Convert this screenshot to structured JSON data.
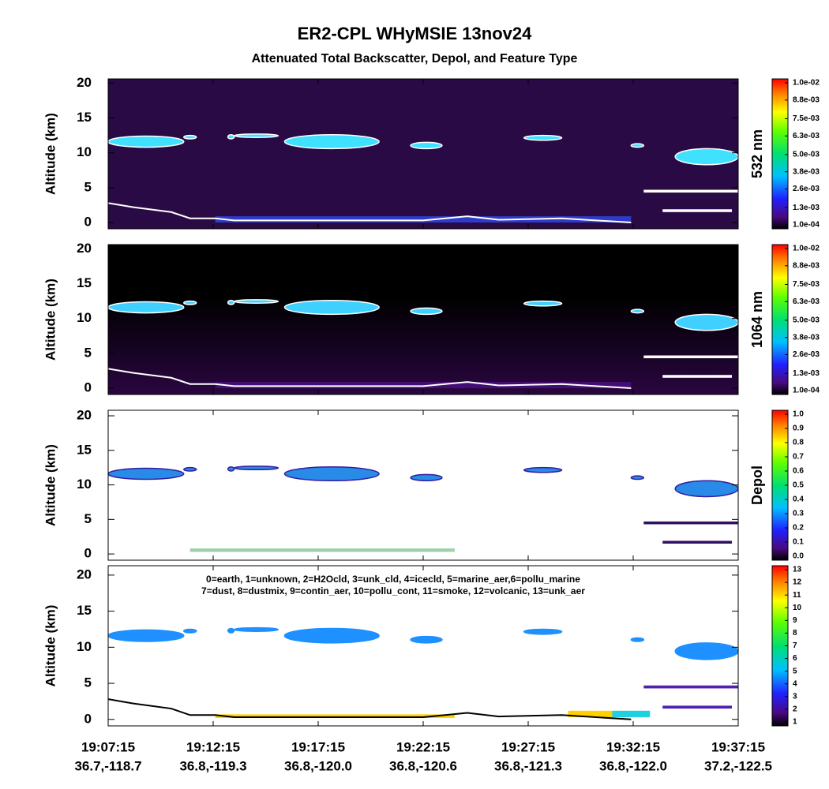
{
  "title": "ER2-CPL WHyMSIE 13nov24",
  "subtitle": "Attenuated Total Backscatter, Depol, and Feature Type",
  "chart_data": [
    {
      "type": "heatmap",
      "y_label": "Altitude (km)",
      "ylim": [
        -0.9,
        20.6
      ],
      "yticks": [
        0,
        5,
        10,
        15,
        20
      ],
      "background": "#2a0a44",
      "colorbar": {
        "label": "532 nm",
        "lim": [
          0.0001,
          0.01
        ],
        "ticks": [
          {
            "value": 0.01,
            "label": "1.0e-02"
          },
          {
            "value": 0.0088,
            "label": "8.8e-03"
          },
          {
            "value": 0.0075,
            "label": "7.5e-03"
          },
          {
            "value": 0.0063,
            "label": "6.3e-03"
          },
          {
            "value": 0.005,
            "label": "5.0e-03"
          },
          {
            "value": 0.0038,
            "label": "3.8e-03"
          },
          {
            "value": 0.0026,
            "label": "2.6e-03"
          },
          {
            "value": 0.0013,
            "label": "1.3e-03"
          },
          {
            "value": 0.0001,
            "label": "1.0e-04"
          }
        ]
      }
    },
    {
      "type": "heatmap",
      "y_label": "Altitude (km)",
      "ylim": [
        -0.9,
        20.6
      ],
      "yticks": [
        0,
        5,
        10,
        15,
        20
      ],
      "background": "#050008",
      "colorbar": {
        "label": "1064 nm",
        "lim": [
          0.0001,
          0.01
        ],
        "ticks": [
          {
            "value": 0.01,
            "label": "1.0e-02"
          },
          {
            "value": 0.0088,
            "label": "8.8e-03"
          },
          {
            "value": 0.0075,
            "label": "7.5e-03"
          },
          {
            "value": 0.0063,
            "label": "6.3e-03"
          },
          {
            "value": 0.005,
            "label": "5.0e-03"
          },
          {
            "value": 0.0038,
            "label": "3.8e-03"
          },
          {
            "value": 0.0026,
            "label": "2.6e-03"
          },
          {
            "value": 0.0013,
            "label": "1.3e-03"
          },
          {
            "value": 0.0001,
            "label": "1.0e-04"
          }
        ]
      }
    },
    {
      "type": "heatmap",
      "y_label": "Altitude (km)",
      "ylim": [
        -0.9,
        20.8
      ],
      "yticks": [
        0,
        5,
        10,
        15,
        20
      ],
      "background": "#ffffff",
      "colorbar": {
        "label": "Depol",
        "lim": [
          0,
          1
        ],
        "ticks": [
          {
            "value": 1,
            "label": "1.0"
          },
          0.9,
          0.8,
          0.7,
          0.6,
          0.5,
          0.4,
          0.3,
          0.2,
          0.1,
          {
            "value": 0,
            "label": "0.0"
          }
        ]
      }
    },
    {
      "type": "heatmap",
      "y_label": "Altitude (km)",
      "ylim": [
        -0.9,
        21.3
      ],
      "yticks": [
        0,
        5,
        10,
        15,
        20
      ],
      "background": "#ffffff",
      "annotation": [
        "0=earth, 1=unknown, 2=H2Ocld, 3=unk_cld, 4=icecld, 5=marine_aer,6=pollu_marine",
        "7=dust, 8=dustmix, 9=contin_aer, 10=pollu_cont, 11=smoke, 12=volcanic, 13=unk_aer"
      ],
      "colorbar": {
        "lim": [
          1,
          13
        ],
        "ticks": [
          13,
          12,
          11,
          10,
          9,
          8,
          7,
          6,
          5,
          4,
          3,
          2,
          1
        ]
      },
      "x_ticks": [
        {
          "time": "19:07:15",
          "coord": "36.7,-118.7"
        },
        {
          "time": "19:12:15",
          "coord": "36.8,-119.3"
        },
        {
          "time": "19:17:15",
          "coord": "36.8,-120.0"
        },
        {
          "time": "19:22:15",
          "coord": "36.8,-120.6"
        },
        {
          "time": "19:27:15",
          "coord": "36.8,-121.3"
        },
        {
          "time": "19:32:15",
          "coord": "36.8,-122.0"
        },
        {
          "time": "19:37:15",
          "coord": "37.2,-122.5"
        }
      ]
    }
  ]
}
